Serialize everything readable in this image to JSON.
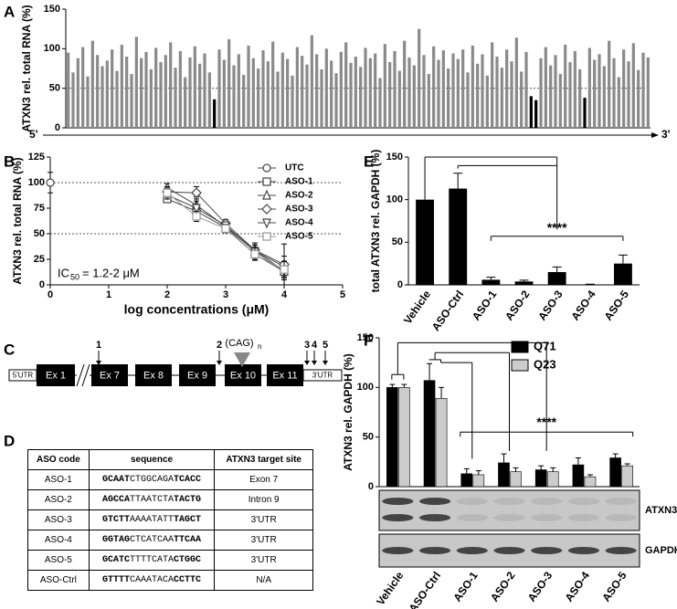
{
  "panel_labels": [
    "A",
    "B",
    "C",
    "D",
    "E",
    "F"
  ],
  "chart_data": [
    {
      "type": "bar",
      "ylabel": "ATXN3 rel. total RNA (%)",
      "x_start_label": "5'",
      "x_end_label": "3'",
      "ylim": [
        0,
        150
      ],
      "yticks": [
        0,
        50,
        100,
        150
      ],
      "reference_lines": [
        50
      ],
      "color": "#8a8a8a",
      "highlight_color": "#000000",
      "highlighted": [
        30,
        95,
        96,
        106
      ],
      "values": [
        95,
        70,
        88,
        102,
        65,
        110,
        92,
        78,
        85,
        99,
        72,
        105,
        90,
        68,
        115,
        88,
        96,
        74,
        101,
        83,
        92,
        108,
        76,
        97,
        64,
        89,
        103,
        81,
        94,
        70,
        36,
        99,
        86,
        112,
        79,
        93,
        67,
        104,
        88,
        75,
        98,
        84,
        109,
        71,
        95,
        87,
        66,
        102,
        91,
        80,
        117,
        93,
        74,
        100,
        85,
        69,
        96,
        108,
        82,
        90,
        77,
        101,
        88,
        94,
        63,
        106,
        83,
        97,
        72,
        110,
        89,
        79,
        125,
        92,
        68,
        103,
        86,
        98,
        75,
        94,
        87,
        99,
        70,
        104,
        81,
        93,
        66,
        108,
        90,
        76,
        99,
        84,
        114,
        71,
        96,
        40,
        35,
        88,
        102,
        79,
        92,
        68,
        105,
        83,
        97,
        74,
        38,
        101,
        86,
        93,
        78,
        110,
        88,
        64,
        99,
        84,
        107,
        73,
        95,
        89
      ]
    },
    {
      "type": "scatter",
      "ylabel": "ATXN3 rel. total RNA (%)",
      "xlabel": "log concentrations (μM)",
      "annotation": [
        "IC",
        "50",
        "= 1.2-2 μM"
      ],
      "xlim": [
        0,
        5
      ],
      "xticks": [
        0,
        1,
        2,
        3,
        4,
        5
      ],
      "ylim": [
        0,
        125
      ],
      "yticks": [
        0,
        25,
        50,
        75,
        100,
        125
      ],
      "reference_lines": [
        100,
        50
      ],
      "series": [
        {
          "name": "UTC",
          "color": "#444444",
          "marker": "circle",
          "x": [
            0
          ],
          "values": [
            100
          ],
          "errors": [
            10
          ]
        },
        {
          "name": "ASO-1",
          "color": "#444444",
          "marker": "square",
          "x": [
            2,
            2.5,
            3,
            3.5,
            4
          ],
          "values": [
            84,
            72,
            56,
            30,
            13
          ],
          "errors": [
            3,
            6,
            4,
            5,
            8
          ]
        },
        {
          "name": "ASO-2",
          "color": "#444444",
          "marker": "triangle",
          "x": [
            2,
            2.5,
            3,
            3.5,
            4
          ],
          "values": [
            95,
            78,
            57,
            33,
            18
          ],
          "errors": [
            4,
            8,
            3,
            6,
            10
          ]
        },
        {
          "name": "ASO-3",
          "color": "#444444",
          "marker": "diamond",
          "x": [
            2,
            2.5,
            3,
            3.5,
            4
          ],
          "values": [
            91,
            90,
            60,
            34,
            20
          ],
          "errors": [
            5,
            6,
            4,
            7,
            20
          ]
        },
        {
          "name": "ASO-4",
          "color": "#444444",
          "marker": "triangle-down",
          "x": [
            2,
            2.5,
            3,
            3.5,
            4
          ],
          "values": [
            88,
            75,
            58,
            33,
            14
          ],
          "errors": [
            4,
            7,
            3,
            6,
            9
          ]
        },
        {
          "name": "ASO-5",
          "color": "#999999",
          "marker": "square",
          "x": [
            2,
            2.5,
            3,
            3.5,
            4
          ],
          "values": [
            90,
            67,
            55,
            30,
            15
          ],
          "errors": [
            3,
            5,
            4,
            6,
            8
          ]
        }
      ]
    },
    {
      "type": "bar",
      "ylabel": "total ATXN3 rel. GAPDH (%)",
      "significance": "****",
      "ylim": [
        0,
        150
      ],
      "yticks": [
        0,
        50,
        100,
        150
      ],
      "color": "#000000",
      "categories": [
        "Vehicle",
        "ASO-Ctrl",
        "ASO-1",
        "ASO-2",
        "ASO-3",
        "ASO-4",
        "ASO-5"
      ],
      "values": [
        100,
        113,
        6,
        4,
        15,
        0.5,
        25
      ],
      "errors": [
        0,
        18,
        3,
        1.5,
        6,
        0.3,
        10
      ]
    },
    {
      "type": "grouped_bar",
      "ylabel": "ATXN3 rel. GAPDH (%)",
      "significance": "****",
      "blot_labels": [
        "ATXN3",
        "GAPDH"
      ],
      "ylim": [
        0,
        150
      ],
      "yticks": [
        0,
        50,
        100,
        150
      ],
      "categories": [
        "Vehicle",
        "ASO-Ctrl",
        "ASO-1",
        "ASO-2",
        "ASO-3",
        "ASO-4",
        "ASO-5"
      ],
      "series": [
        {
          "name": "Q71",
          "color": "#000000",
          "values": [
            100,
            107,
            13,
            24,
            17,
            22,
            29
          ],
          "errors": [
            3,
            17,
            5,
            9,
            4,
            7,
            4
          ]
        },
        {
          "name": "Q23",
          "color": "#cccccc",
          "values": [
            100,
            89,
            12,
            15,
            15,
            10,
            21
          ],
          "errors": [
            3,
            11,
            4,
            4,
            4,
            2,
            2
          ]
        }
      ]
    }
  ],
  "gene_diagram": {
    "utr5": "5'UTR",
    "exons": [
      "Ex 1",
      "Ex 7",
      "Ex 8",
      "Ex 9",
      "Ex 10",
      "Ex 11"
    ],
    "utr3": "3'UTR",
    "repeat_label": "(CAG)",
    "repeat_subscript": "n",
    "sites": [
      "1",
      "2",
      "3",
      "4",
      "5"
    ]
  },
  "table": {
    "header": [
      "ASO code",
      "sequence",
      "ATXN3 target site"
    ],
    "rows": [
      [
        "ASO-1",
        [
          "GCAAT",
          "CTGGCAGA",
          "TCACC"
        ],
        "Exon 7"
      ],
      [
        "ASO-2",
        [
          "AGCCA",
          "TTAATCTA",
          "TACTG"
        ],
        "Intron 9"
      ],
      [
        "ASO-3",
        [
          "GTCTT",
          "AAAATATT",
          "TAGCT"
        ],
        "3'UTR"
      ],
      [
        "ASO-4",
        [
          "GGTAG",
          "CTCATCAA",
          "TTCAA"
        ],
        "3'UTR"
      ],
      [
        "ASO-5",
        [
          "GCATC",
          "TTTTCATA",
          "CTGGC"
        ],
        "3'UTR"
      ],
      [
        "ASO-Ctrl",
        [
          "GTTTT",
          "CAAATACA",
          "CCTTC"
        ],
        "N/A"
      ]
    ]
  }
}
